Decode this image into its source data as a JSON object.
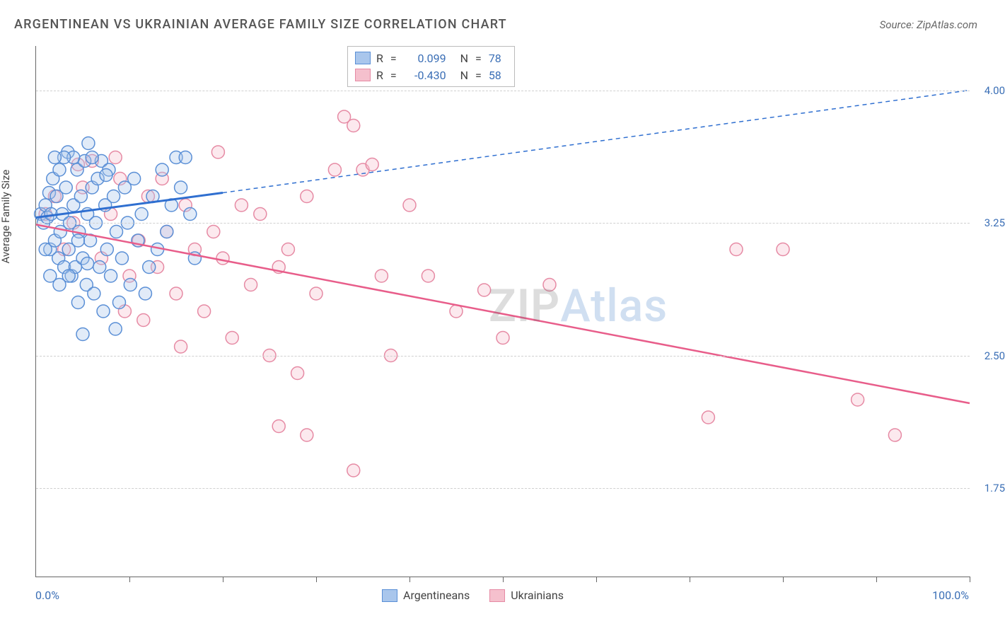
{
  "title": "ARGENTINEAN VS UKRAINIAN AVERAGE FAMILY SIZE CORRELATION CHART",
  "source": "Source: ZipAtlas.com",
  "watermark": {
    "part1": "ZIP",
    "part2": "Atlas"
  },
  "yaxis_title": "Average Family Size",
  "xaxis": {
    "min_label": "0.0%",
    "max_label": "100.0%",
    "min": 0,
    "max": 100,
    "tick_positions_pct": [
      10,
      20,
      30,
      40,
      50,
      60,
      70,
      80,
      90,
      100
    ]
  },
  "yaxis": {
    "min": 1.25,
    "max": 4.25,
    "ticks": [
      1.75,
      2.5,
      3.25,
      4.0
    ]
  },
  "grid_color": "#d0d0d0",
  "axis_label_color": "#3b6fb6",
  "series": {
    "argentineans": {
      "label": "Argentineans",
      "fill_color": "#a9c6ec",
      "stroke_color": "#5a8fd6",
      "line_color": "#2f6fd0",
      "r_label": "R",
      "r_value": "0.099",
      "n_label": "N",
      "n_value": "78",
      "trend": {
        "x1": 0,
        "y1": 3.28,
        "x_solid_end": 20,
        "y_solid_end": 3.42,
        "x2": 100,
        "y2": 4.0
      },
      "points": [
        [
          0.5,
          3.3
        ],
        [
          0.8,
          3.25
        ],
        [
          1.0,
          3.35
        ],
        [
          1.2,
          3.28
        ],
        [
          1.4,
          3.42
        ],
        [
          1.5,
          3.1
        ],
        [
          1.6,
          3.3
        ],
        [
          1.8,
          3.5
        ],
        [
          2.0,
          3.15
        ],
        [
          2.2,
          3.4
        ],
        [
          2.4,
          3.05
        ],
        [
          2.5,
          3.55
        ],
        [
          2.6,
          3.2
        ],
        [
          2.8,
          3.3
        ],
        [
          3.0,
          3.0
        ],
        [
          3.2,
          3.45
        ],
        [
          3.4,
          3.65
        ],
        [
          3.5,
          3.1
        ],
        [
          3.6,
          3.25
        ],
        [
          3.8,
          2.95
        ],
        [
          4.0,
          3.35
        ],
        [
          4.2,
          3.0
        ],
        [
          4.4,
          3.55
        ],
        [
          4.5,
          2.8
        ],
        [
          4.6,
          3.2
        ],
        [
          4.8,
          3.4
        ],
        [
          5.0,
          3.05
        ],
        [
          5.2,
          3.6
        ],
        [
          5.4,
          2.9
        ],
        [
          5.5,
          3.3
        ],
        [
          5.6,
          3.7
        ],
        [
          5.8,
          3.15
        ],
        [
          6.0,
          3.45
        ],
        [
          6.2,
          2.85
        ],
        [
          6.4,
          3.25
        ],
        [
          6.6,
          3.5
        ],
        [
          6.8,
          3.0
        ],
        [
          7.0,
          3.6
        ],
        [
          7.2,
          2.75
        ],
        [
          7.4,
          3.35
        ],
        [
          7.6,
          3.1
        ],
        [
          7.8,
          3.55
        ],
        [
          8.0,
          2.95
        ],
        [
          8.3,
          3.4
        ],
        [
          8.6,
          3.2
        ],
        [
          8.9,
          2.8
        ],
        [
          9.2,
          3.05
        ],
        [
          9.5,
          3.45
        ],
        [
          9.8,
          3.25
        ],
        [
          10.1,
          2.9
        ],
        [
          10.5,
          3.5
        ],
        [
          10.9,
          3.15
        ],
        [
          11.3,
          3.3
        ],
        [
          11.7,
          2.85
        ],
        [
          12.1,
          3.0
        ],
        [
          12.5,
          3.4
        ],
        [
          13.0,
          3.1
        ],
        [
          13.5,
          3.55
        ],
        [
          14.0,
          3.2
        ],
        [
          14.5,
          3.35
        ],
        [
          15.0,
          3.62
        ],
        [
          15.5,
          3.45
        ],
        [
          16.0,
          3.62
        ],
        [
          16.5,
          3.3
        ],
        [
          17.0,
          3.05
        ],
        [
          8.5,
          2.65
        ],
        [
          5.0,
          2.62
        ],
        [
          4.0,
          3.62
        ],
        [
          3.0,
          3.62
        ],
        [
          6.0,
          3.62
        ],
        [
          2.0,
          3.62
        ],
        [
          7.5,
          3.52
        ],
        [
          1.0,
          3.1
        ],
        [
          1.5,
          2.95
        ],
        [
          2.5,
          2.9
        ],
        [
          3.5,
          2.95
        ],
        [
          4.5,
          3.15
        ],
        [
          5.5,
          3.02
        ]
      ]
    },
    "ukrainians": {
      "label": "Ukrainians",
      "fill_color": "#f5c0cd",
      "stroke_color": "#e68aa4",
      "line_color": "#e85d8a",
      "r_label": "R",
      "r_value": "-0.430",
      "n_label": "N",
      "n_value": "58",
      "trend": {
        "x1": 0,
        "y1": 3.24,
        "x2": 100,
        "y2": 2.23
      },
      "points": [
        [
          1.0,
          3.3
        ],
        [
          2.0,
          3.4
        ],
        [
          3.0,
          3.1
        ],
        [
          4.0,
          3.25
        ],
        [
          5.0,
          3.45
        ],
        [
          6.0,
          3.6
        ],
        [
          7.0,
          3.05
        ],
        [
          8.0,
          3.3
        ],
        [
          9.0,
          3.5
        ],
        [
          10.0,
          2.95
        ],
        [
          11.0,
          3.15
        ],
        [
          12.0,
          3.4
        ],
        [
          13.0,
          3.0
        ],
        [
          14.0,
          3.2
        ],
        [
          15.0,
          2.85
        ],
        [
          16.0,
          3.35
        ],
        [
          17.0,
          3.1
        ],
        [
          18.0,
          2.75
        ],
        [
          19.0,
          3.2
        ],
        [
          20.0,
          3.05
        ],
        [
          21.0,
          2.6
        ],
        [
          22.0,
          3.35
        ],
        [
          23.0,
          2.9
        ],
        [
          24.0,
          3.3
        ],
        [
          25.0,
          2.5
        ],
        [
          26.0,
          3.0
        ],
        [
          27.0,
          3.1
        ],
        [
          28.0,
          2.4
        ],
        [
          29.0,
          3.4
        ],
        [
          30.0,
          2.85
        ],
        [
          32.0,
          3.55
        ],
        [
          34.0,
          3.8
        ],
        [
          35.0,
          3.55
        ],
        [
          36.0,
          3.58
        ],
        [
          37.0,
          2.95
        ],
        [
          38.0,
          2.5
        ],
        [
          40.0,
          3.35
        ],
        [
          42.0,
          2.95
        ],
        [
          45.0,
          2.75
        ],
        [
          48.0,
          2.87
        ],
        [
          50.0,
          2.6
        ],
        [
          33.0,
          3.85
        ],
        [
          29.0,
          2.05
        ],
        [
          26.0,
          2.1
        ],
        [
          34.0,
          1.85
        ],
        [
          55.0,
          2.9
        ],
        [
          75.0,
          3.1
        ],
        [
          72.0,
          2.15
        ],
        [
          88.0,
          2.25
        ],
        [
          92.0,
          2.05
        ],
        [
          80.0,
          3.1
        ],
        [
          19.5,
          3.65
        ],
        [
          4.5,
          3.58
        ],
        [
          8.5,
          3.62
        ],
        [
          13.5,
          3.5
        ],
        [
          15.5,
          2.55
        ],
        [
          11.5,
          2.7
        ],
        [
          9.5,
          2.75
        ]
      ]
    }
  },
  "marker_radius": 9,
  "legend_eq": "="
}
